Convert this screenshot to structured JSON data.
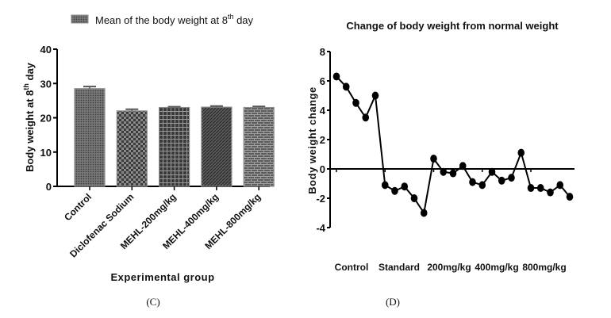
{
  "chart_data": [
    {
      "type": "bar",
      "panel_caption": "(C)",
      "legend": [
        {
          "label": "Mean of the body weight at 8",
          "superscript": "th",
          "suffix": " day"
        }
      ],
      "legend_position": "top",
      "ylabel": "Body weight at 8",
      "ylabel_superscript": "th",
      "ylabel_suffix": " day",
      "xlabel": "Experimental group",
      "categories": [
        "Control",
        "Diclofenac Sodium",
        "MEHL-200mg/kg",
        "MEHL-400mg/kg",
        "MEHL-800mg/kg"
      ],
      "values": [
        28.5,
        22.0,
        23.0,
        23.1,
        23.0
      ],
      "errors": [
        0.6,
        0.5,
        0.2,
        0.3,
        0.3
      ],
      "patterns": [
        "fine-dots",
        "checker",
        "grid",
        "diagonal",
        "brick"
      ],
      "ylim": [
        0,
        40
      ],
      "yticks": [
        0,
        10,
        20,
        30,
        40
      ],
      "grid": false
    },
    {
      "type": "line",
      "panel_caption": "(D)",
      "title": "Change of body weight from normal weight",
      "ylabel": "Body weight change",
      "xlabel": "",
      "ylim": [
        -4,
        8
      ],
      "yticks": [
        -4,
        -2,
        0,
        2,
        4,
        6,
        8
      ],
      "group_labels": [
        "Control",
        "Standard",
        "200mg/kg",
        "400mg/kg",
        "800mg/kg"
      ],
      "points_per_group": 5,
      "series": [
        {
          "name": "Body weight change",
          "values": [
            6.3,
            5.6,
            4.5,
            3.5,
            5.0,
            -1.1,
            -1.5,
            -1.2,
            -2.0,
            -3.0,
            0.7,
            -0.2,
            -0.3,
            0.2,
            -0.9,
            -1.1,
            -0.2,
            -0.8,
            -0.6,
            1.1,
            -1.3,
            -1.3,
            -1.6,
            -1.1,
            -1.9
          ]
        }
      ],
      "grid": false
    }
  ]
}
